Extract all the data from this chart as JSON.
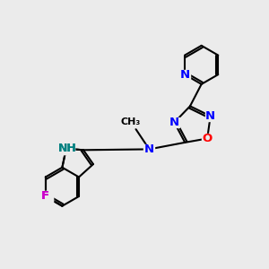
{
  "background_color": "#ebebeb",
  "bond_color": "#000000",
  "atom_colors": {
    "N": "#0000ff",
    "O": "#ff0000",
    "F": "#cc00cc",
    "NH": "#008080",
    "C": "#000000"
  },
  "font_size": 9.5,
  "fig_size": [
    3.0,
    3.0
  ],
  "dpi": 100
}
